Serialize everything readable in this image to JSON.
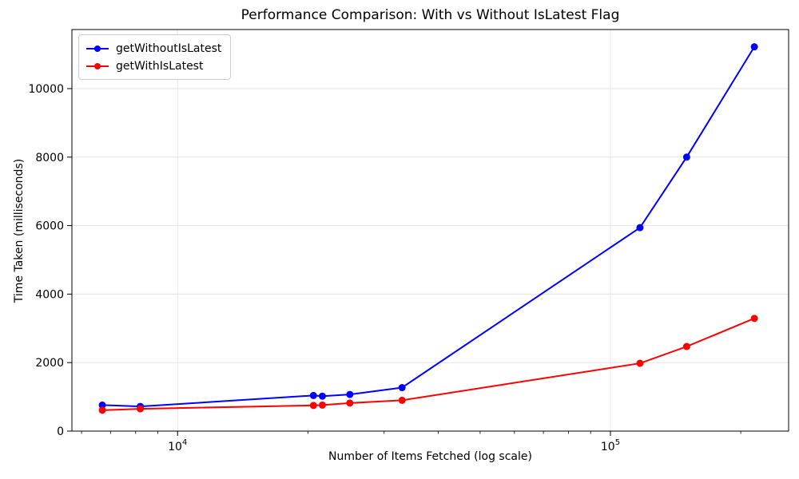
{
  "figure": {
    "title": "Performance Comparison: With vs Without IsLatest Flag",
    "xlabel": "Number of Items Fetched (log scale)",
    "ylabel": "Time Taken (milliseconds)"
  },
  "legend": {
    "position": "upper left",
    "items": [
      {
        "label": "getWithoutIsLatest",
        "color": "#0000ff"
      },
      {
        "label": "getWithIsLatest",
        "color": "#ff0000"
      }
    ]
  },
  "chart_data": {
    "type": "line",
    "title": "Performance Comparison: With vs Without IsLatest Flag",
    "xlabel": "Number of Items Fetched (log scale)",
    "ylabel": "Time Taken (milliseconds)",
    "x_scale": "log",
    "x": [
      6700,
      8200,
      20600,
      21600,
      25000,
      33000,
      117000,
      150000,
      215000
    ],
    "series": [
      {
        "name": "getWithoutIsLatest",
        "color": "#0000ff",
        "marker": "circle",
        "values": [
          760,
          720,
          1040,
          1020,
          1070,
          1270,
          5940,
          8000,
          11220
        ]
      },
      {
        "name": "getWithIsLatest",
        "color": "#ff0000",
        "marker": "circle",
        "values": [
          610,
          650,
          750,
          760,
          820,
          900,
          1980,
          2470,
          3290
        ]
      }
    ],
    "xlim": [
      5700,
      258000
    ],
    "ylim": [
      0,
      11725
    ],
    "y_ticks": [
      0,
      2000,
      4000,
      6000,
      8000,
      10000
    ],
    "x_major_ticks": [
      {
        "value": 10000,
        "base": "10",
        "exponent": "4"
      },
      {
        "value": 100000,
        "base": "10",
        "exponent": "5"
      }
    ],
    "grid": true,
    "legend_position": "upper left",
    "colors": {
      "grid": "#e5e5e5",
      "spine": "#000000",
      "tick_text": "#000000",
      "background": "#ffffff"
    }
  }
}
